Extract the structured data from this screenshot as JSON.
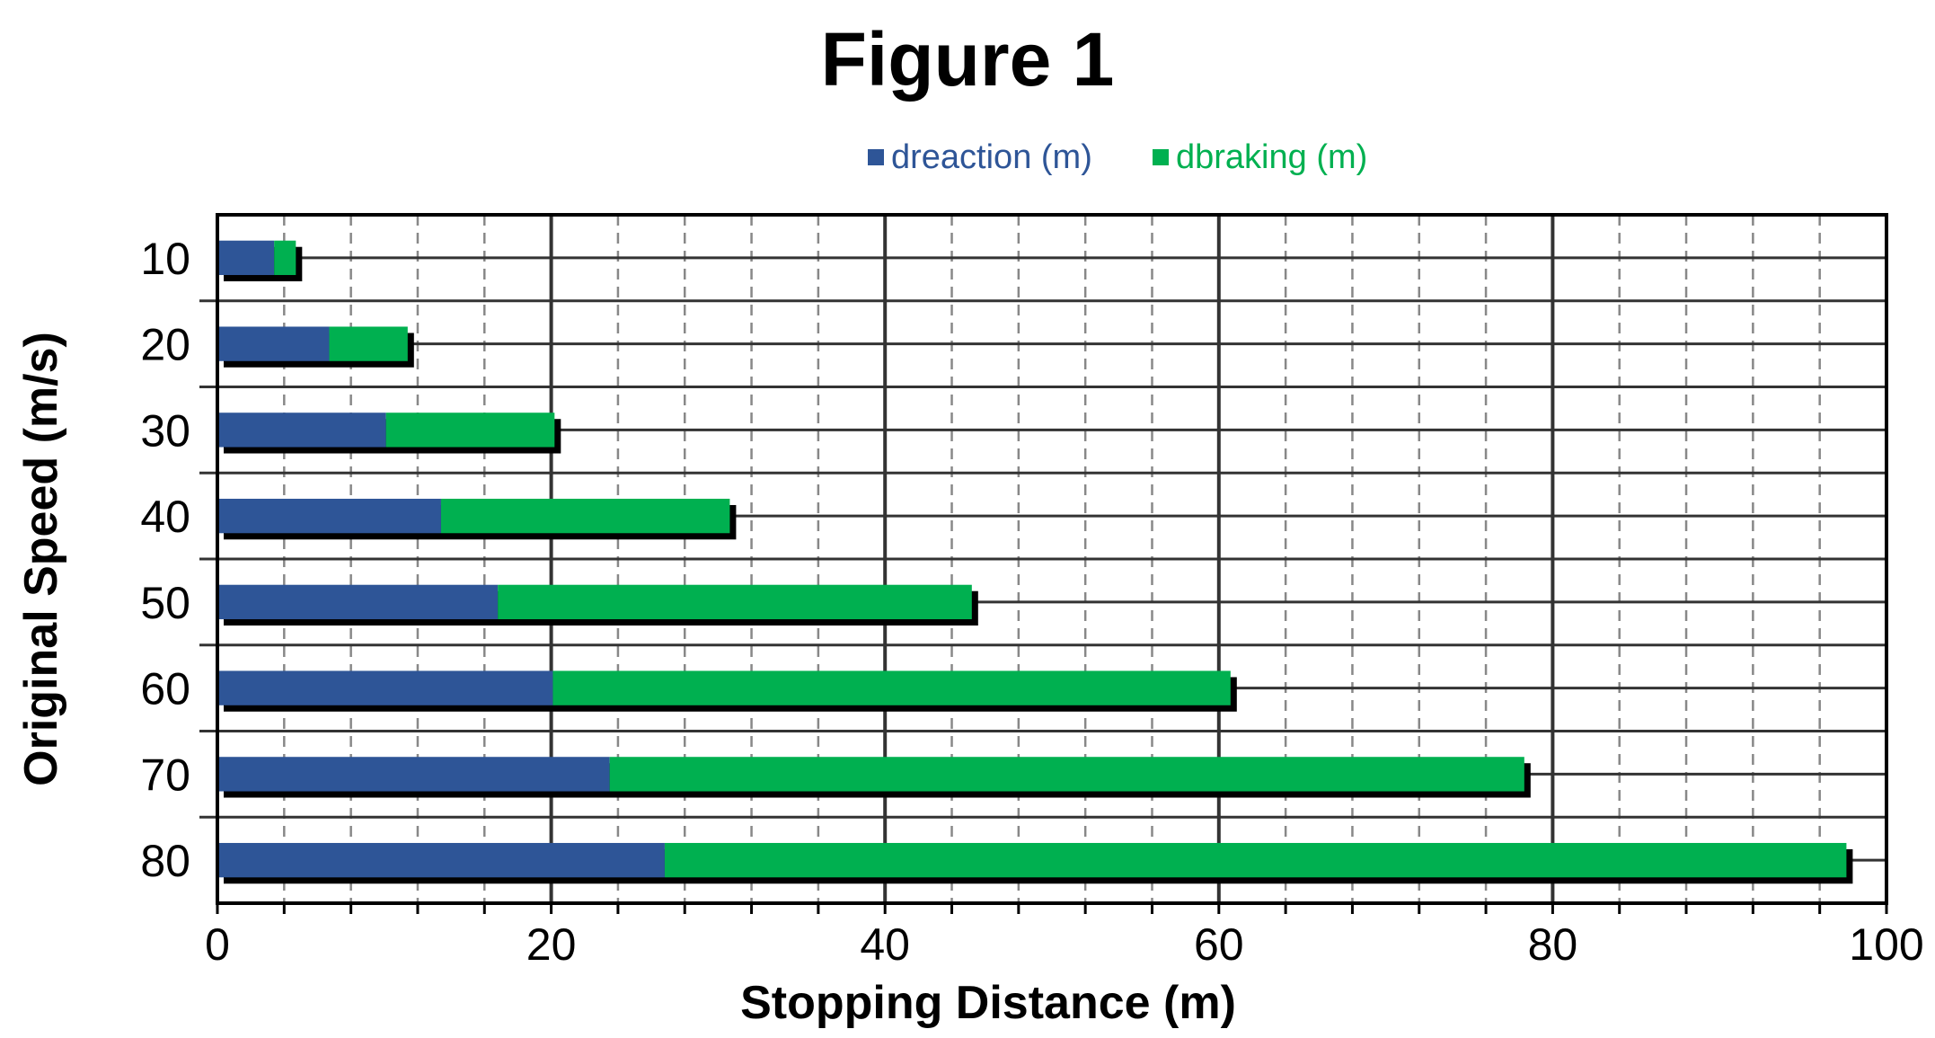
{
  "chart_data": {
    "type": "bar",
    "orientation": "horizontal",
    "stacked": true,
    "title": "Figure 1",
    "xlabel": "Stopping Distance (m)",
    "ylabel": "Original Speed (m/s)",
    "xlim": [
      0,
      100
    ],
    "x_ticks": [
      "0",
      "20",
      "40",
      "60",
      "80",
      "100"
    ],
    "categories": [
      "10",
      "20",
      "30",
      "40",
      "50",
      "60",
      "70",
      "80"
    ],
    "series": [
      {
        "name": "dreaction (m)",
        "color": "#2e5597",
        "values": [
          3.4,
          6.7,
          10.1,
          13.4,
          16.8,
          20.1,
          23.5,
          26.8
        ]
      },
      {
        "name": "dbraking (m)",
        "color": "#00b050",
        "values": [
          1.3,
          4.7,
          10.1,
          17.3,
          28.4,
          40.6,
          54.8,
          70.8
        ]
      }
    ],
    "legend_position": "top",
    "grid": {
      "major": true,
      "minor_dashed": true
    }
  }
}
